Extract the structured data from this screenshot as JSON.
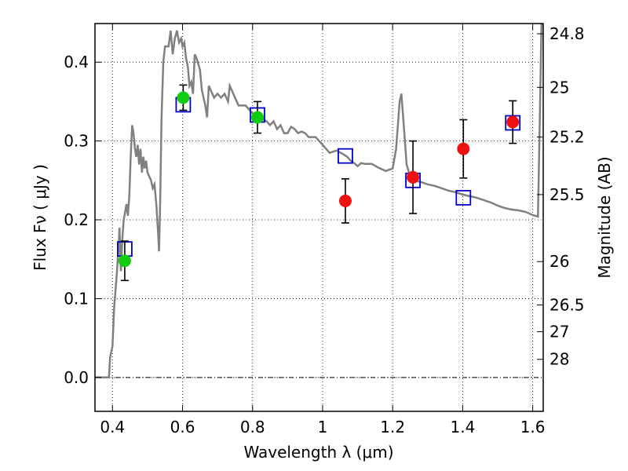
{
  "chart_data": {
    "type": "scatter",
    "xlabel": "Wavelength  λ (μm)",
    "ylabel_left": "Flux  Fν  ( μJy )",
    "ylabel_right": "Magnitude (AB)",
    "xlim": [
      0.35,
      1.63
    ],
    "ylim": [
      -0.043,
      0.449
    ],
    "x_ticks": [
      {
        "value": 0.4,
        "label": "0.4"
      },
      {
        "value": 0.6,
        "label": "0.6"
      },
      {
        "value": 0.8,
        "label": "0.8"
      },
      {
        "value": 1.0,
        "label": "1"
      },
      {
        "value": 1.2,
        "label": "1.2"
      },
      {
        "value": 1.4,
        "label": "1.4"
      },
      {
        "value": 1.6,
        "label": "1.6"
      }
    ],
    "y_ticks": [
      {
        "value": 0.0,
        "label": "0.0"
      },
      {
        "value": 0.1,
        "label": "0.1"
      },
      {
        "value": 0.2,
        "label": "0.2"
      },
      {
        "value": 0.3,
        "label": "0.3"
      },
      {
        "value": 0.4,
        "label": "0.4"
      }
    ],
    "right_ticks": [
      {
        "label": "24.8",
        "flux": 0.436
      },
      {
        "label": "25",
        "flux": 0.368
      },
      {
        "label": "25.2",
        "flux": 0.305
      },
      {
        "label": "25.5",
        "flux": 0.232
      },
      {
        "label": "26",
        "flux": 0.147
      },
      {
        "label": "26.5",
        "flux": 0.092
      },
      {
        "label": "27",
        "flux": 0.058
      },
      {
        "label": "28",
        "flux": 0.023
      }
    ],
    "grid": true,
    "colors": {
      "model": "#808080",
      "model_points": "#0000cc",
      "optical_obs": "#11cc11",
      "nir_obs": "#ee1111",
      "errorbar": "#000000"
    },
    "series": [
      {
        "kind": "line",
        "points": [
          [
            0.35,
            0.0
          ],
          [
            0.39,
            0.0
          ],
          [
            0.393,
            0.025
          ],
          [
            0.4,
            0.04
          ],
          [
            0.405,
            0.09
          ],
          [
            0.412,
            0.13
          ],
          [
            0.418,
            0.17
          ],
          [
            0.42,
            0.19
          ],
          [
            0.424,
            0.135
          ],
          [
            0.428,
            0.175
          ],
          [
            0.432,
            0.2
          ],
          [
            0.436,
            0.21
          ],
          [
            0.44,
            0.22
          ],
          [
            0.444,
            0.205
          ],
          [
            0.448,
            0.23
          ],
          [
            0.452,
            0.28
          ],
          [
            0.456,
            0.32
          ],
          [
            0.46,
            0.31
          ],
          [
            0.464,
            0.29
          ],
          [
            0.468,
            0.28
          ],
          [
            0.472,
            0.295
          ],
          [
            0.476,
            0.27
          ],
          [
            0.48,
            0.29
          ],
          [
            0.484,
            0.26
          ],
          [
            0.488,
            0.28
          ],
          [
            0.492,
            0.265
          ],
          [
            0.496,
            0.275
          ],
          [
            0.5,
            0.26
          ],
          [
            0.505,
            0.255
          ],
          [
            0.51,
            0.25
          ],
          [
            0.515,
            0.24
          ],
          [
            0.52,
            0.245
          ],
          [
            0.525,
            0.22
          ],
          [
            0.53,
            0.185
          ],
          [
            0.533,
            0.16
          ],
          [
            0.536,
            0.22
          ],
          [
            0.54,
            0.33
          ],
          [
            0.545,
            0.4
          ],
          [
            0.55,
            0.42
          ],
          [
            0.56,
            0.42
          ],
          [
            0.566,
            0.44
          ],
          [
            0.572,
            0.41
          ],
          [
            0.578,
            0.43
          ],
          [
            0.584,
            0.44
          ],
          [
            0.59,
            0.425
          ],
          [
            0.596,
            0.43
          ],
          [
            0.6,
            0.42
          ],
          [
            0.605,
            0.425
          ],
          [
            0.61,
            0.405
          ],
          [
            0.615,
            0.395
          ],
          [
            0.62,
            0.37
          ],
          [
            0.625,
            0.375
          ],
          [
            0.63,
            0.36
          ],
          [
            0.635,
            0.41
          ],
          [
            0.64,
            0.405
          ],
          [
            0.65,
            0.39
          ],
          [
            0.655,
            0.365
          ],
          [
            0.66,
            0.355
          ],
          [
            0.665,
            0.345
          ],
          [
            0.67,
            0.33
          ],
          [
            0.675,
            0.37
          ],
          [
            0.68,
            0.365
          ],
          [
            0.69,
            0.355
          ],
          [
            0.7,
            0.36
          ],
          [
            0.71,
            0.355
          ],
          [
            0.72,
            0.36
          ],
          [
            0.73,
            0.35
          ],
          [
            0.735,
            0.37
          ],
          [
            0.74,
            0.365
          ],
          [
            0.75,
            0.355
          ],
          [
            0.76,
            0.345
          ],
          [
            0.78,
            0.345
          ],
          [
            0.8,
            0.335
          ],
          [
            0.82,
            0.33
          ],
          [
            0.84,
            0.325
          ],
          [
            0.85,
            0.32
          ],
          [
            0.86,
            0.325
          ],
          [
            0.87,
            0.315
          ],
          [
            0.88,
            0.32
          ],
          [
            0.89,
            0.31
          ],
          [
            0.9,
            0.31
          ],
          [
            0.91,
            0.318
          ],
          [
            0.92,
            0.315
          ],
          [
            0.93,
            0.31
          ],
          [
            0.94,
            0.312
          ],
          [
            0.95,
            0.31
          ],
          [
            0.96,
            0.305
          ],
          [
            0.98,
            0.305
          ],
          [
            1.0,
            0.295
          ],
          [
            1.02,
            0.285
          ],
          [
            1.04,
            0.288
          ],
          [
            1.06,
            0.283
          ],
          [
            1.07,
            0.28
          ],
          [
            1.08,
            0.275
          ],
          [
            1.09,
            0.272
          ],
          [
            1.1,
            0.268
          ],
          [
            1.11,
            0.272
          ],
          [
            1.12,
            0.271
          ],
          [
            1.14,
            0.271
          ],
          [
            1.16,
            0.266
          ],
          [
            1.18,
            0.262
          ],
          [
            1.2,
            0.265
          ],
          [
            1.21,
            0.29
          ],
          [
            1.22,
            0.35
          ],
          [
            1.225,
            0.36
          ],
          [
            1.23,
            0.33
          ],
          [
            1.24,
            0.27
          ],
          [
            1.25,
            0.255
          ],
          [
            1.26,
            0.25
          ],
          [
            1.28,
            0.248
          ],
          [
            1.3,
            0.245
          ],
          [
            1.32,
            0.243
          ],
          [
            1.34,
            0.24
          ],
          [
            1.36,
            0.237
          ],
          [
            1.38,
            0.235
          ],
          [
            1.4,
            0.232
          ],
          [
            1.42,
            0.23
          ],
          [
            1.44,
            0.228
          ],
          [
            1.46,
            0.225
          ],
          [
            1.48,
            0.222
          ],
          [
            1.5,
            0.218
          ],
          [
            1.52,
            0.215
          ],
          [
            1.54,
            0.213
          ],
          [
            1.56,
            0.212
          ],
          [
            1.58,
            0.21
          ],
          [
            1.6,
            0.206
          ],
          [
            1.615,
            0.204
          ],
          [
            1.62,
            0.32
          ],
          [
            1.625,
            0.45
          ]
        ]
      },
      {
        "kind": "squares",
        "points": [
          [
            0.435,
            0.163
          ],
          [
            0.602,
            0.346
          ],
          [
            0.814,
            0.333
          ],
          [
            1.065,
            0.281
          ],
          [
            1.258,
            0.25
          ],
          [
            1.402,
            0.228
          ],
          [
            1.543,
            0.323
          ]
        ]
      },
      {
        "kind": "points_optical",
        "points": [
          {
            "x": 0.435,
            "y": 0.148,
            "err": 0.025
          },
          {
            "x": 0.602,
            "y": 0.355,
            "err": 0.016
          },
          {
            "x": 0.814,
            "y": 0.33,
            "err": 0.02
          }
        ]
      },
      {
        "kind": "points_nir",
        "points": [
          {
            "x": 1.065,
            "y": 0.224,
            "err": 0.028
          },
          {
            "x": 1.258,
            "y": 0.254,
            "err": 0.046
          },
          {
            "x": 1.402,
            "y": 0.29,
            "err": 0.037
          },
          {
            "x": 1.543,
            "y": 0.324,
            "err": 0.027
          }
        ]
      }
    ]
  }
}
